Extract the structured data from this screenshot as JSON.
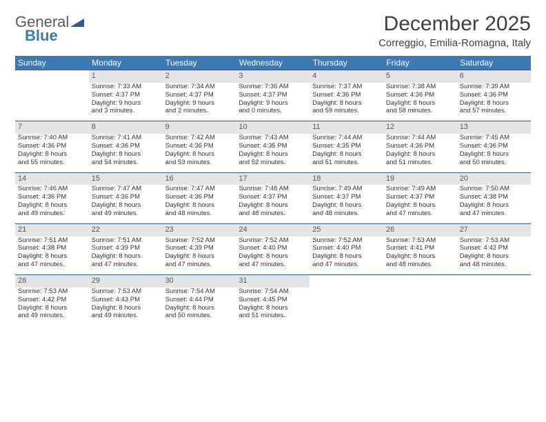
{
  "logo": {
    "word1": "General",
    "word2": "Blue",
    "word1_color": "#595959",
    "word2_color": "#3c78b4",
    "shape_color": "#2e5d8a"
  },
  "title": "December 2025",
  "location": "Correggio, Emilia-Romagna, Italy",
  "header_bg": "#3c78b4",
  "header_fg": "#ffffff",
  "daynum_bg": "#e5e5e5",
  "daynum_border": "#2e5d8a",
  "text_color": "#333333",
  "days_of_week": [
    "Sunday",
    "Monday",
    "Tuesday",
    "Wednesday",
    "Thursday",
    "Friday",
    "Saturday"
  ],
  "weeks": [
    [
      null,
      {
        "n": "1",
        "sr": "Sunrise: 7:33 AM",
        "ss": "Sunset: 4:37 PM",
        "d1": "Daylight: 9 hours",
        "d2": "and 3 minutes."
      },
      {
        "n": "2",
        "sr": "Sunrise: 7:34 AM",
        "ss": "Sunset: 4:37 PM",
        "d1": "Daylight: 9 hours",
        "d2": "and 2 minutes."
      },
      {
        "n": "3",
        "sr": "Sunrise: 7:36 AM",
        "ss": "Sunset: 4:37 PM",
        "d1": "Daylight: 9 hours",
        "d2": "and 0 minutes."
      },
      {
        "n": "4",
        "sr": "Sunrise: 7:37 AM",
        "ss": "Sunset: 4:36 PM",
        "d1": "Daylight: 8 hours",
        "d2": "and 59 minutes."
      },
      {
        "n": "5",
        "sr": "Sunrise: 7:38 AM",
        "ss": "Sunset: 4:36 PM",
        "d1": "Daylight: 8 hours",
        "d2": "and 58 minutes."
      },
      {
        "n": "6",
        "sr": "Sunrise: 7:39 AM",
        "ss": "Sunset: 4:36 PM",
        "d1": "Daylight: 8 hours",
        "d2": "and 57 minutes."
      }
    ],
    [
      {
        "n": "7",
        "sr": "Sunrise: 7:40 AM",
        "ss": "Sunset: 4:36 PM",
        "d1": "Daylight: 8 hours",
        "d2": "and 55 minutes."
      },
      {
        "n": "8",
        "sr": "Sunrise: 7:41 AM",
        "ss": "Sunset: 4:36 PM",
        "d1": "Daylight: 8 hours",
        "d2": "and 54 minutes."
      },
      {
        "n": "9",
        "sr": "Sunrise: 7:42 AM",
        "ss": "Sunset: 4:36 PM",
        "d1": "Daylight: 8 hours",
        "d2": "and 53 minutes."
      },
      {
        "n": "10",
        "sr": "Sunrise: 7:43 AM",
        "ss": "Sunset: 4:35 PM",
        "d1": "Daylight: 8 hours",
        "d2": "and 52 minutes."
      },
      {
        "n": "11",
        "sr": "Sunrise: 7:44 AM",
        "ss": "Sunset: 4:35 PM",
        "d1": "Daylight: 8 hours",
        "d2": "and 51 minutes."
      },
      {
        "n": "12",
        "sr": "Sunrise: 7:44 AM",
        "ss": "Sunset: 4:36 PM",
        "d1": "Daylight: 8 hours",
        "d2": "and 51 minutes."
      },
      {
        "n": "13",
        "sr": "Sunrise: 7:45 AM",
        "ss": "Sunset: 4:36 PM",
        "d1": "Daylight: 8 hours",
        "d2": "and 50 minutes."
      }
    ],
    [
      {
        "n": "14",
        "sr": "Sunrise: 7:46 AM",
        "ss": "Sunset: 4:36 PM",
        "d1": "Daylight: 8 hours",
        "d2": "and 49 minutes."
      },
      {
        "n": "15",
        "sr": "Sunrise: 7:47 AM",
        "ss": "Sunset: 4:36 PM",
        "d1": "Daylight: 8 hours",
        "d2": "and 49 minutes."
      },
      {
        "n": "16",
        "sr": "Sunrise: 7:47 AM",
        "ss": "Sunset: 4:36 PM",
        "d1": "Daylight: 8 hours",
        "d2": "and 48 minutes."
      },
      {
        "n": "17",
        "sr": "Sunrise: 7:48 AM",
        "ss": "Sunset: 4:37 PM",
        "d1": "Daylight: 8 hours",
        "d2": "and 48 minutes."
      },
      {
        "n": "18",
        "sr": "Sunrise: 7:49 AM",
        "ss": "Sunset: 4:37 PM",
        "d1": "Daylight: 8 hours",
        "d2": "and 48 minutes."
      },
      {
        "n": "19",
        "sr": "Sunrise: 7:49 AM",
        "ss": "Sunset: 4:37 PM",
        "d1": "Daylight: 8 hours",
        "d2": "and 47 minutes."
      },
      {
        "n": "20",
        "sr": "Sunrise: 7:50 AM",
        "ss": "Sunset: 4:38 PM",
        "d1": "Daylight: 8 hours",
        "d2": "and 47 minutes."
      }
    ],
    [
      {
        "n": "21",
        "sr": "Sunrise: 7:51 AM",
        "ss": "Sunset: 4:38 PM",
        "d1": "Daylight: 8 hours",
        "d2": "and 47 minutes."
      },
      {
        "n": "22",
        "sr": "Sunrise: 7:51 AM",
        "ss": "Sunset: 4:39 PM",
        "d1": "Daylight: 8 hours",
        "d2": "and 47 minutes."
      },
      {
        "n": "23",
        "sr": "Sunrise: 7:52 AM",
        "ss": "Sunset: 4:39 PM",
        "d1": "Daylight: 8 hours",
        "d2": "and 47 minutes."
      },
      {
        "n": "24",
        "sr": "Sunrise: 7:52 AM",
        "ss": "Sunset: 4:40 PM",
        "d1": "Daylight: 8 hours",
        "d2": "and 47 minutes."
      },
      {
        "n": "25",
        "sr": "Sunrise: 7:52 AM",
        "ss": "Sunset: 4:40 PM",
        "d1": "Daylight: 8 hours",
        "d2": "and 47 minutes."
      },
      {
        "n": "26",
        "sr": "Sunrise: 7:53 AM",
        "ss": "Sunset: 4:41 PM",
        "d1": "Daylight: 8 hours",
        "d2": "and 48 minutes."
      },
      {
        "n": "27",
        "sr": "Sunrise: 7:53 AM",
        "ss": "Sunset: 4:42 PM",
        "d1": "Daylight: 8 hours",
        "d2": "and 48 minutes."
      }
    ],
    [
      {
        "n": "28",
        "sr": "Sunrise: 7:53 AM",
        "ss": "Sunset: 4:42 PM",
        "d1": "Daylight: 8 hours",
        "d2": "and 49 minutes."
      },
      {
        "n": "29",
        "sr": "Sunrise: 7:53 AM",
        "ss": "Sunset: 4:43 PM",
        "d1": "Daylight: 8 hours",
        "d2": "and 49 minutes."
      },
      {
        "n": "30",
        "sr": "Sunrise: 7:54 AM",
        "ss": "Sunset: 4:44 PM",
        "d1": "Daylight: 8 hours",
        "d2": "and 50 minutes."
      },
      {
        "n": "31",
        "sr": "Sunrise: 7:54 AM",
        "ss": "Sunset: 4:45 PM",
        "d1": "Daylight: 8 hours",
        "d2": "and 51 minutes."
      },
      null,
      null,
      null
    ]
  ]
}
